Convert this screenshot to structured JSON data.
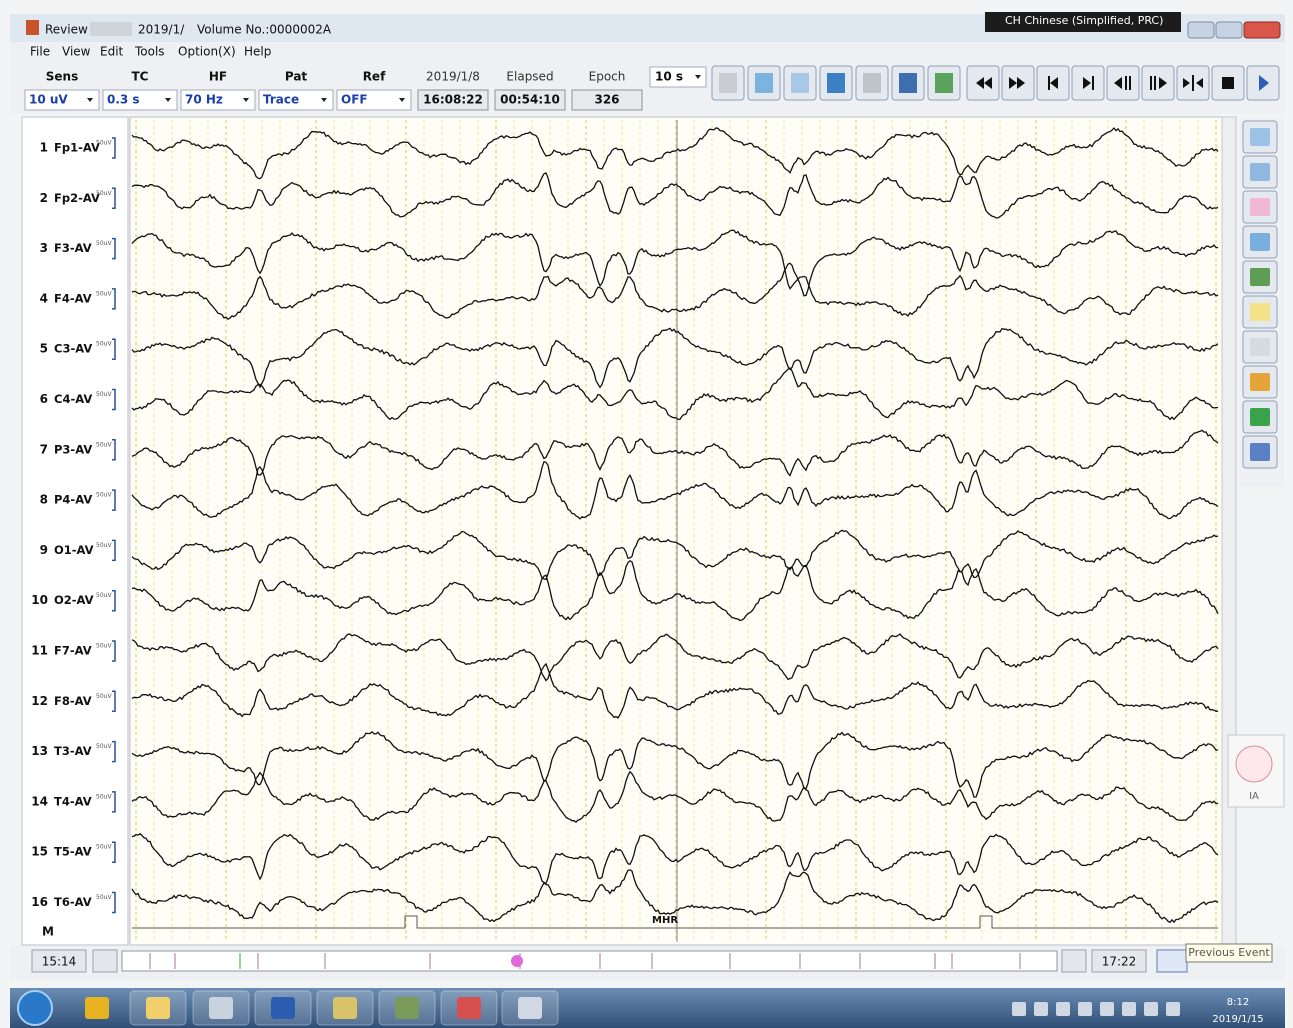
{
  "window": {
    "title": "Review",
    "date": "2019/1/",
    "volume": "Volume No.:0000002A",
    "language": "CH Chinese (Simplified, PRC)"
  },
  "menu": [
    "File",
    "View",
    "Edit",
    "Tools",
    "Option(X)",
    "Help"
  ],
  "settings": [
    {
      "label": "Sens",
      "value": "10 uV"
    },
    {
      "label": "TC",
      "value": "0.3 s"
    },
    {
      "label": "HF",
      "value": "70 Hz"
    },
    {
      "label": "Pat",
      "value": "Trace"
    },
    {
      "label": "Ref",
      "value": "OFF"
    }
  ],
  "status": [
    {
      "label": "2019/1/8",
      "value": "16:08:22"
    },
    {
      "label": "Elapsed",
      "value": "00:54:10"
    },
    {
      "label": "Epoch",
      "value": "326"
    }
  ],
  "page_length": "10 s",
  "channels": [
    {
      "number": "1",
      "label": "Fp1-AV",
      "scale": "50uV"
    },
    {
      "number": "2",
      "label": "Fp2-AV",
      "scale": "50uV"
    },
    {
      "number": "3",
      "label": "F3-AV",
      "scale": "50uV"
    },
    {
      "number": "4",
      "label": "F4-AV",
      "scale": "50uV"
    },
    {
      "number": "5",
      "label": "C3-AV",
      "scale": "50uV"
    },
    {
      "number": "6",
      "label": "C4-AV",
      "scale": "50uV"
    },
    {
      "number": "7",
      "label": "P3-AV",
      "scale": "50uV"
    },
    {
      "number": "8",
      "label": "P4-AV",
      "scale": "50uV"
    },
    {
      "number": "9",
      "label": "O1-AV",
      "scale": "50uV"
    },
    {
      "number": "10",
      "label": "O2-AV",
      "scale": "50uV"
    },
    {
      "number": "11",
      "label": "F7-AV",
      "scale": "50uV"
    },
    {
      "number": "12",
      "label": "F8-AV",
      "scale": "50uV"
    },
    {
      "number": "13",
      "label": "T3-AV",
      "scale": "50uV"
    },
    {
      "number": "14",
      "label": "T4-AV",
      "scale": "50uV"
    },
    {
      "number": "15",
      "label": "T5-AV",
      "scale": "50uV"
    },
    {
      "number": "16",
      "label": "T6-AV",
      "scale": "50uV"
    }
  ],
  "marker_row": "M",
  "event_label": "MHR",
  "timeline": {
    "start": "15:14",
    "end": "17:22",
    "tooltip": "Previous Event"
  },
  "side_panel_label": "IA",
  "taskbar": {
    "time": "8:12",
    "date": "2019/1/15"
  }
}
